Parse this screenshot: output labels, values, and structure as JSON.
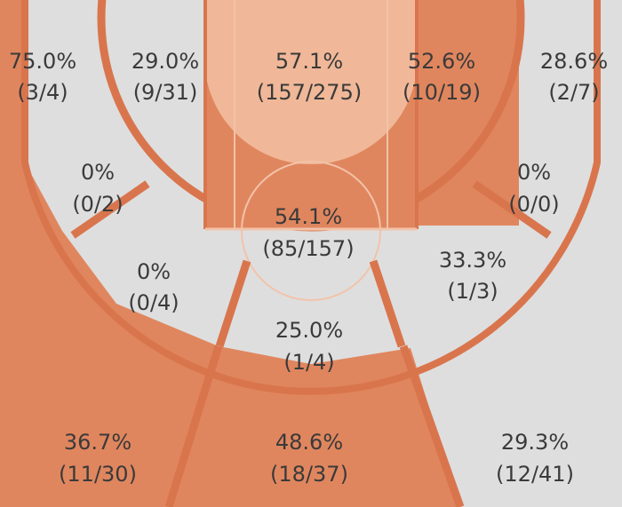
{
  "chart_data": {
    "type": "heatmap",
    "title": "",
    "zones": [
      {
        "id": "left-corner-three",
        "pct": "75.0%",
        "made": 3,
        "att": 4,
        "color": "#e0865e"
      },
      {
        "id": "left-wing-long-two",
        "pct": "29.0%",
        "made": 9,
        "att": 31,
        "color": "#dedede"
      },
      {
        "id": "paint",
        "pct": "57.1%",
        "made": 157,
        "att": 275,
        "color": "#f0b898"
      },
      {
        "id": "right-wing-long-two",
        "pct": "52.6%",
        "made": 10,
        "att": 19,
        "color": "#e0865e"
      },
      {
        "id": "right-corner-three",
        "pct": "28.6%",
        "made": 2,
        "att": 7,
        "color": "#dedede"
      },
      {
        "id": "left-baseline-mid",
        "pct": "0%",
        "made": 0,
        "att": 2,
        "color": "#dedede"
      },
      {
        "id": "right-baseline-mid",
        "pct": "0%",
        "made": 0,
        "att": 0,
        "color": "#dedede"
      },
      {
        "id": "free-throw-area",
        "pct": "54.1%",
        "made": 85,
        "att": 157,
        "color": "#e0865e"
      },
      {
        "id": "left-elbow-mid",
        "pct": "0%",
        "made": 0,
        "att": 4,
        "color": "#dedede"
      },
      {
        "id": "right-elbow-mid",
        "pct": "33.3%",
        "made": 1,
        "att": 3,
        "color": "#dedede"
      },
      {
        "id": "top-key-mid",
        "pct": "25.0%",
        "made": 1,
        "att": 4,
        "color": "#dedede"
      },
      {
        "id": "left-wing-three",
        "pct": "36.7%",
        "made": 11,
        "att": 30,
        "color": "#e0865e"
      },
      {
        "id": "top-three",
        "pct": "48.6%",
        "made": 18,
        "att": 37,
        "color": "#e0865e"
      },
      {
        "id": "right-wing-three",
        "pct": "29.3%",
        "made": 12,
        "att": 41,
        "color": "#dedede"
      }
    ],
    "colors": {
      "hot": "#e0865e",
      "warm": "#f0b898",
      "cold": "#dedede",
      "line": "#d9754d",
      "text": "#3a3a3a"
    }
  }
}
